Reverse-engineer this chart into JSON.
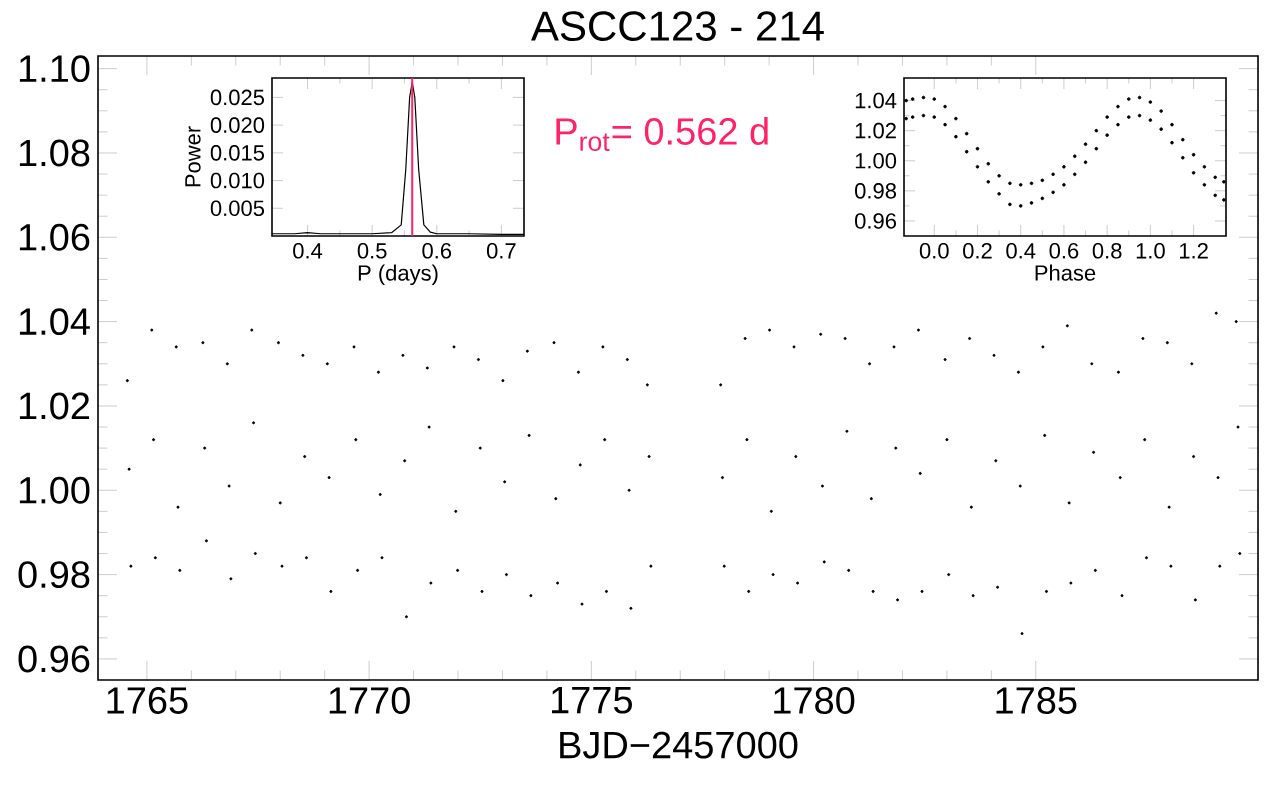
{
  "chart_data": [
    {
      "type": "scatter",
      "title": "ASCC123 - 214",
      "xlabel": "BJD−2457000",
      "marker": "circle",
      "color": "#000000",
      "annotations": [
        "P$_{rot}$= 0.562 d"
      ],
      "xlim": [
        1763.9,
        1790
      ],
      "ylim": [
        0.955,
        1.103
      ],
      "xticks": [
        1765,
        1770,
        1775,
        1780,
        1785
      ],
      "yticks": [
        {
          "value": 0.96,
          "label": "0.96"
        },
        {
          "value": 0.98,
          "label": "0.98"
        },
        {
          "value": 1.0,
          "label": "1.00"
        },
        {
          "value": 1.02,
          "label": "1.02"
        },
        {
          "value": 1.04,
          "label": "1.04"
        },
        {
          "value": 1.06,
          "label": "1.06"
        },
        {
          "value": 1.08,
          "label": "1.08"
        },
        {
          "value": 1.1,
          "label": "1.10"
        }
      ],
      "x": [
        1764.56,
        1764.6,
        1764.64,
        1765.11,
        1765.15,
        1765.19,
        1765.66,
        1765.7,
        1765.74,
        1766.26,
        1766.3,
        1766.34,
        1766.81,
        1766.85,
        1766.89,
        1767.36,
        1767.4,
        1767.44,
        1767.96,
        1768.0,
        1768.04,
        1768.51,
        1768.55,
        1768.59,
        1769.06,
        1769.1,
        1769.14,
        1769.66,
        1769.7,
        1769.74,
        1770.21,
        1770.25,
        1770.29,
        1770.76,
        1770.8,
        1770.84,
        1771.31,
        1771.35,
        1771.39,
        1771.91,
        1771.95,
        1771.99,
        1772.46,
        1772.5,
        1772.54,
        1773.01,
        1773.05,
        1773.09,
        1773.56,
        1773.6,
        1773.64,
        1774.16,
        1774.2,
        1774.24,
        1774.71,
        1774.75,
        1774.79,
        1775.26,
        1775.3,
        1775.34,
        1775.81,
        1775.85,
        1775.89,
        1776.26,
        1776.3,
        1776.34,
        1777.91,
        1777.95,
        1777.99,
        1778.46,
        1778.5,
        1778.54,
        1779.01,
        1779.05,
        1779.09,
        1779.56,
        1779.6,
        1779.64,
        1780.16,
        1780.2,
        1780.24,
        1780.71,
        1780.75,
        1780.79,
        1781.26,
        1781.3,
        1781.34,
        1781.81,
        1781.85,
        1781.89,
        1782.36,
        1782.4,
        1782.44,
        1782.96,
        1783.0,
        1783.04,
        1783.51,
        1783.55,
        1783.59,
        1784.06,
        1784.1,
        1784.14,
        1784.61,
        1784.65,
        1784.69,
        1785.16,
        1785.2,
        1785.24,
        1785.71,
        1785.75,
        1785.79,
        1786.26,
        1786.3,
        1786.34,
        1786.86,
        1786.9,
        1786.94,
        1787.41,
        1787.45,
        1787.49,
        1787.96,
        1788.0,
        1788.04,
        1788.51,
        1788.55,
        1788.59,
        1789.06,
        1789.1,
        1789.14,
        1789.51,
        1789.55,
        1789.59
      ],
      "values": [
        1.026,
        1.005,
        0.982,
        1.038,
        1.012,
        0.984,
        1.034,
        0.996,
        0.981,
        1.035,
        1.01,
        0.988,
        1.03,
        1.001,
        0.979,
        1.038,
        1.016,
        0.985,
        1.035,
        0.997,
        0.982,
        1.032,
        1.008,
        0.984,
        1.03,
        1.003,
        0.976,
        1.034,
        1.012,
        0.981,
        1.028,
        0.999,
        0.984,
        1.032,
        1.007,
        0.97,
        1.029,
        1.015,
        0.978,
        1.034,
        0.995,
        0.981,
        1.031,
        1.01,
        0.976,
        1.026,
        1.002,
        0.98,
        1.033,
        1.013,
        0.975,
        1.035,
        0.998,
        0.978,
        1.028,
        1.006,
        0.973,
        1.034,
        1.012,
        0.976,
        1.031,
        1.0,
        0.972,
        1.025,
        1.008,
        0.982,
        1.025,
        1.003,
        0.982,
        1.036,
        1.012,
        0.976,
        1.038,
        0.995,
        0.98,
        1.034,
        1.008,
        0.978,
        1.037,
        1.001,
        0.983,
        1.036,
        1.014,
        0.981,
        1.03,
        0.998,
        0.976,
        1.034,
        1.01,
        0.974,
        1.038,
        1.004,
        0.976,
        1.031,
        1.012,
        0.98,
        1.036,
        0.996,
        0.975,
        1.032,
        1.007,
        0.977,
        1.028,
        1.001,
        0.966,
        1.034,
        1.013,
        0.976,
        1.039,
        0.997,
        0.978,
        1.03,
        1.009,
        0.981,
        1.028,
        1.003,
        0.975,
        1.036,
        1.012,
        0.984,
        1.035,
        0.996,
        0.982,
        1.03,
        1.008,
        0.974,
        1.042,
        1.003,
        0.982,
        1.04,
        1.015,
        0.985
      ]
    },
    {
      "type": "line",
      "xlabel": "P (days)",
      "ylabel": "Power",
      "marker": "none",
      "color": "#000000",
      "xlim": [
        0.345,
        0.735
      ],
      "ylim": [
        0,
        0.0285
      ],
      "xticks": [
        0.4,
        0.5,
        0.6,
        0.7
      ],
      "yticks": [
        {
          "value": 0.005,
          "label": "0.005"
        },
        {
          "value": 0.01,
          "label": "0.010"
        },
        {
          "value": 0.015,
          "label": "0.015"
        },
        {
          "value": 0.02,
          "label": "0.020"
        },
        {
          "value": 0.025,
          "label": "0.025"
        }
      ],
      "ref_lines": [
        {
          "axis": "x",
          "value": 0.562,
          "color": "#ff2266"
        }
      ],
      "x": [
        0.345,
        0.38,
        0.4,
        0.42,
        0.47,
        0.5,
        0.53,
        0.545,
        0.552,
        0.558,
        0.562,
        0.566,
        0.572,
        0.58,
        0.59,
        0.6,
        0.65,
        0.7,
        0.735
      ],
      "values": [
        0.0004,
        0.0004,
        0.0006,
        0.0004,
        0.0004,
        0.0004,
        0.0006,
        0.002,
        0.012,
        0.025,
        0.0277,
        0.025,
        0.012,
        0.002,
        0.0007,
        0.0004,
        0.0004,
        0.0003,
        0.0003
      ]
    },
    {
      "type": "scatter",
      "xlabel": "Phase",
      "marker": "circle",
      "color": "#000000",
      "xlim": [
        -0.14,
        1.35
      ],
      "ylim": [
        0.95,
        1.055
      ],
      "xticks": [
        {
          "value": 0,
          "label": "0.0"
        },
        {
          "value": 0.2,
          "label": "0.2"
        },
        {
          "value": 0.4,
          "label": "0.4"
        },
        {
          "value": 0.6,
          "label": "0.6"
        },
        {
          "value": 0.8,
          "label": "0.8"
        },
        {
          "value": 1.0,
          "label": "1.0"
        },
        {
          "value": 1.2,
          "label": "1.2"
        }
      ],
      "yticks": [
        {
          "value": 0.96,
          "label": "0.96"
        },
        {
          "value": 0.98,
          "label": "0.98"
        },
        {
          "value": 1.0,
          "label": "1.00"
        },
        {
          "value": 1.02,
          "label": "1.02"
        },
        {
          "value": 1.04,
          "label": "1.04"
        }
      ],
      "x": [
        -0.13,
        -0.13,
        -0.1,
        -0.1,
        -0.05,
        -0.05,
        0,
        0,
        0.05,
        0.05,
        0.1,
        0.1,
        0.15,
        0.15,
        0.2,
        0.2,
        0.25,
        0.25,
        0.3,
        0.3,
        0.35,
        0.35,
        0.4,
        0.4,
        0.45,
        0.45,
        0.5,
        0.5,
        0.55,
        0.55,
        0.6,
        0.6,
        0.65,
        0.65,
        0.7,
        0.7,
        0.75,
        0.75,
        0.8,
        0.8,
        0.85,
        0.85,
        0.9,
        0.9,
        0.95,
        0.95,
        1.0,
        1.0,
        1.05,
        1.05,
        1.1,
        1.1,
        1.15,
        1.15,
        1.2,
        1.2,
        1.25,
        1.25,
        1.3,
        1.3,
        1.34,
        1.34
      ],
      "values": [
        1.04,
        1.028,
        1.041,
        1.029,
        1.042,
        1.03,
        1.041,
        1.029,
        1.036,
        1.024,
        1.028,
        1.016,
        1.018,
        1.006,
        1.008,
        0.996,
        0.998,
        0.986,
        0.99,
        0.978,
        0.985,
        0.971,
        0.984,
        0.97,
        0.985,
        0.972,
        0.987,
        0.975,
        0.991,
        0.979,
        0.996,
        0.984,
        1.003,
        0.991,
        1.011,
        0.999,
        1.02,
        1.008,
        1.029,
        1.017,
        1.036,
        1.024,
        1.041,
        1.029,
        1.042,
        1.03,
        1.039,
        1.027,
        1.033,
        1.021,
        1.024,
        1.012,
        1.014,
        1.002,
        1.004,
        0.992,
        0.996,
        0.984,
        0.989,
        0.977,
        0.986,
        0.974
      ]
    }
  ]
}
